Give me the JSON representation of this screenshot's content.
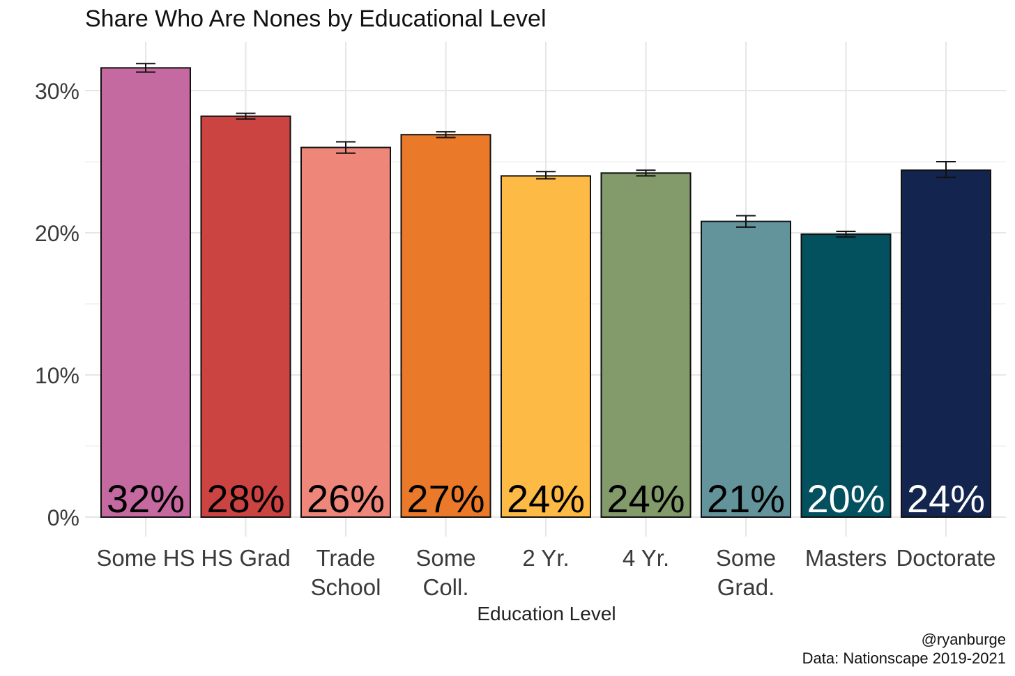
{
  "chart_data": {
    "type": "bar",
    "title": "Share Who Are Nones by Educational Level",
    "xlabel": "Education Level",
    "ylabel": "",
    "ylim": [
      0,
      0.33
    ],
    "yticks": [
      0,
      0.1,
      0.2,
      0.3
    ],
    "ytick_labels": [
      "0%",
      "10%",
      "20%",
      "30%"
    ],
    "grid": true,
    "categories": [
      [
        "Some HS"
      ],
      [
        "HS Grad"
      ],
      [
        "Trade",
        "School"
      ],
      [
        "Some",
        "Coll."
      ],
      [
        "2 Yr."
      ],
      [
        "4 Yr."
      ],
      [
        "Some",
        "Grad."
      ],
      [
        "Masters"
      ],
      [
        "Doctorate"
      ]
    ],
    "values": [
      0.316,
      0.282,
      0.26,
      0.269,
      0.24,
      0.242,
      0.208,
      0.199,
      0.244
    ],
    "error_low": [
      0.313,
      0.28,
      0.256,
      0.267,
      0.238,
      0.24,
      0.204,
      0.197,
      0.239
    ],
    "error_high": [
      0.319,
      0.284,
      0.264,
      0.271,
      0.243,
      0.244,
      0.212,
      0.201,
      0.25
    ],
    "data_labels": [
      "32%",
      "28%",
      "26%",
      "27%",
      "24%",
      "24%",
      "21%",
      "20%",
      "24%"
    ],
    "colors": [
      "#c56aa1",
      "#cc4442",
      "#ee877a",
      "#ea7a29",
      "#fdba45",
      "#839a6b",
      "#63949b",
      "#03505f",
      "#13254f"
    ],
    "label_colors": [
      "#000000",
      "#000000",
      "#000000",
      "#000000",
      "#000000",
      "#000000",
      "#000000",
      "#ffffff",
      "#ffffff"
    ]
  },
  "caption": {
    "author": "@ryanburge",
    "source": "Data: Nationscape 2019-2021"
  }
}
